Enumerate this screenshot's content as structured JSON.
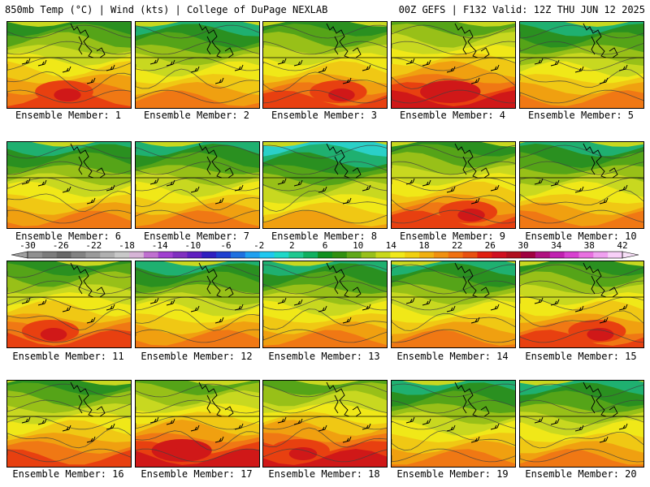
{
  "header": {
    "left": "850mb Temp (°C) | Wind (kts) | College of DuPage NEXLAB",
    "right": "00Z GEFS | F132 Valid: 12Z THU JUN 12 2025"
  },
  "members": [
    {
      "label": "Ensemble Member: 1",
      "warmth": 0.78
    },
    {
      "label": "Ensemble Member: 2",
      "warmth": 0.6
    },
    {
      "label": "Ensemble Member: 3",
      "warmth": 0.72
    },
    {
      "label": "Ensemble Member: 4",
      "warmth": 0.92
    },
    {
      "label": "Ensemble Member: 5",
      "warmth": 0.55
    },
    {
      "label": "Ensemble Member: 6",
      "warmth": 0.62
    },
    {
      "label": "Ensemble Member: 7",
      "warmth": 0.6
    },
    {
      "label": "Ensemble Member: 8",
      "warmth": 0.5
    },
    {
      "label": "Ensemble Member: 9",
      "warmth": 0.8
    },
    {
      "label": "Ensemble Member: 10",
      "warmth": 0.55
    },
    {
      "label": "Ensemble Member: 11",
      "warmth": 0.72
    },
    {
      "label": "Ensemble Member: 12",
      "warmth": 0.55
    },
    {
      "label": "Ensemble Member: 13",
      "warmth": 0.68
    },
    {
      "label": "Ensemble Member: 14",
      "warmth": 0.65
    },
    {
      "label": "Ensemble Member: 15",
      "warmth": 0.75
    },
    {
      "label": "Ensemble Member: 16",
      "warmth": 0.7
    },
    {
      "label": "Ensemble Member: 17",
      "warmth": 0.9
    },
    {
      "label": "Ensemble Member: 18",
      "warmth": 0.88
    },
    {
      "label": "Ensemble Member: 19",
      "warmth": 0.58
    },
    {
      "label": "Ensemble Member: 20",
      "warmth": 0.62
    }
  ],
  "colorbar": {
    "labels": [
      "-30",
      "-26",
      "-22",
      "-18",
      "-14",
      "-10",
      "-6",
      "-2",
      "2",
      "6",
      "10",
      "14",
      "18",
      "22",
      "26",
      "30",
      "34",
      "38",
      "42"
    ],
    "colors": [
      "#909090",
      "#7c7c7c",
      "#686868",
      "#828282",
      "#9a9a9a",
      "#b0b0b0",
      "#c8c8c8",
      "#d6b4d6",
      "#c070d0",
      "#a040d0",
      "#8030c0",
      "#6020c0",
      "#3020c0",
      "#2040d0",
      "#2070e0",
      "#20a0f0",
      "#20c8f0",
      "#20d8c8",
      "#20c890",
      "#10b060",
      "#109020",
      "#309010",
      "#60a818",
      "#98c018",
      "#c8d818",
      "#f0e818",
      "#f0d010",
      "#f0b010",
      "#f09010",
      "#f07010",
      "#e85010",
      "#e02010",
      "#d01020",
      "#b01020",
      "#a00040",
      "#b01080",
      "#c020b0",
      "#d840d0",
      "#e870e0",
      "#f0a0f0",
      "#f8d0f8"
    ]
  }
}
